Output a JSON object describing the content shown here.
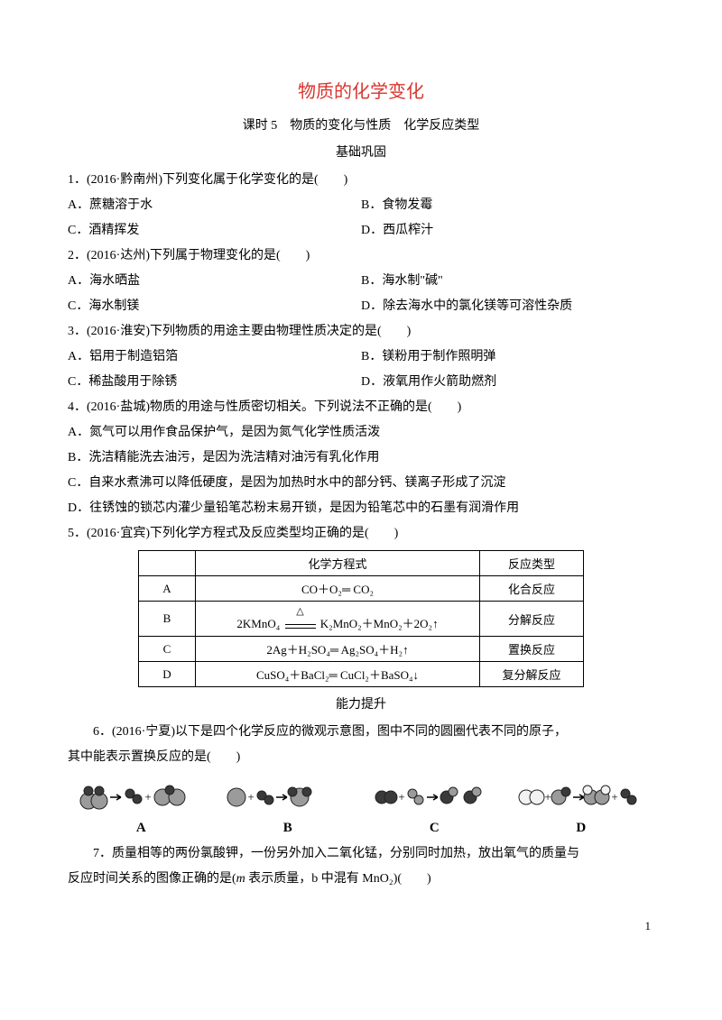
{
  "title": "物质的化学变化",
  "subtitle": "课时 5　物质的变化与性质　化学反应类型",
  "section1": "基础巩固",
  "q1": {
    "stem": "1．(2016·黔南州)下列变化属于化学变化的是(　　)",
    "A": "A．蔗糖溶于水",
    "B": "B．食物发霉",
    "C": "C．酒精挥发",
    "D": "D．西瓜榨汁"
  },
  "q2": {
    "stem": "2．(2016·达州)下列属于物理变化的是(　　)",
    "A": "A．海水晒盐",
    "B": "B．海水制\"碱\"",
    "C": "C．海水制镁",
    "D": "D．除去海水中的氯化镁等可溶性杂质"
  },
  "q3": {
    "stem": "3．(2016·淮安)下列物质的用途主要由物理性质决定的是(　　)",
    "A": "A．铝用于制造铝箔",
    "B": "B．镁粉用于制作照明弹",
    "C": "C．稀盐酸用于除锈",
    "D": "D．液氧用作火箭助燃剂"
  },
  "q4": {
    "stem": "4．(2016·盐城)物质的用途与性质密切相关。下列说法不正确的是(　　)",
    "A": "A．氮气可以用作食品保护气，是因为氮气化学性质活泼",
    "B": "B．洗洁精能洗去油污，是因为洗洁精对油污有乳化作用",
    "C": "C．自来水煮沸可以降低硬度，是因为加热时水中的部分钙、镁离子形成了沉淀",
    "D": "D．往锈蚀的锁芯内灌少量铅笔芯粉末易开锁，是因为铅笔芯中的石墨有润滑作用"
  },
  "q5": {
    "stem": "5．(2016·宜宾)下列化学方程式及反应类型均正确的是(　　)",
    "htext": "化学方程式",
    "htype": "反应类型",
    "rows": {
      "A": {
        "label": "A",
        "eq": "CO＋O₂═ CO₂",
        "type": "化合反应"
      },
      "B": {
        "label": "B",
        "eq_l": "2KMnO₄",
        "eq_r": "K₂MnO₂＋MnO₂＋2O₂↑",
        "type": "分解反应"
      },
      "C": {
        "label": "C",
        "eq": "2Ag＋H₂SO₄═ Ag₂SO₄＋H₂↑",
        "type": "置换反应"
      },
      "D": {
        "label": "D",
        "eq": "CuSO₄＋BaCl₂═ CuCl₂＋BaSO₄↓",
        "type": "复分解反应"
      }
    }
  },
  "section2": "能力提升",
  "q6": {
    "line1": "6．(2016·宁夏)以下是四个化学反应的微观示意图，图中不同的圆圈代表不同的原子，",
    "line2": "其中能表示置换反应的是(　　)",
    "labels": {
      "A": "A",
      "B": "B",
      "C": "C",
      "D": "D"
    }
  },
  "q7": {
    "line1": "7．质量相等的两份氯酸钾，一份另外加入二氧化锰，分别同时加热，放出氧气的质量与",
    "line2_a": "反应时间关系的图像正确的是(",
    "line2_b": "表示质量，b 中混有 MnO₂)(　　)",
    "mvar": "m"
  },
  "diagram_colors": {
    "dark": "#3a3a3a",
    "grey": "#9b9b9b",
    "light": "#f2f2f2",
    "border": "#222"
  },
  "pagenum": "1"
}
